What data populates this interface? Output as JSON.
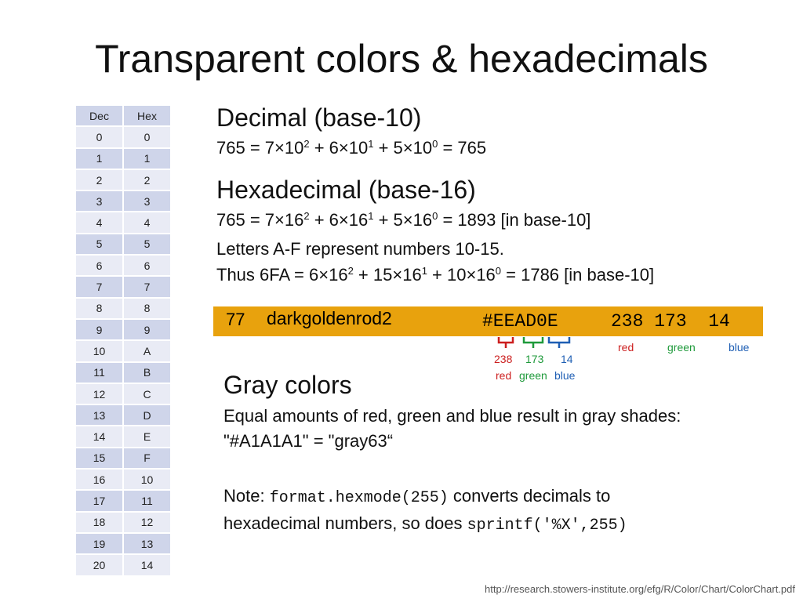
{
  "title": "Transparent colors & hexadecimals",
  "table": {
    "headers": [
      "Dec",
      "Hex"
    ],
    "rows": [
      [
        "0",
        "0"
      ],
      [
        "1",
        "1"
      ],
      [
        "2",
        "2"
      ],
      [
        "3",
        "3"
      ],
      [
        "4",
        "4"
      ],
      [
        "5",
        "5"
      ],
      [
        "6",
        "6"
      ],
      [
        "7",
        "7"
      ],
      [
        "8",
        "8"
      ],
      [
        "9",
        "9"
      ],
      [
        "10",
        "A"
      ],
      [
        "11",
        "B"
      ],
      [
        "12",
        "C"
      ],
      [
        "13",
        "D"
      ],
      [
        "14",
        "E"
      ],
      [
        "15",
        "F"
      ],
      [
        "16",
        "10"
      ],
      [
        "17",
        "11"
      ],
      [
        "18",
        "12"
      ],
      [
        "19",
        "13"
      ],
      [
        "20",
        "14"
      ]
    ]
  },
  "decimal": {
    "heading": "Decimal (base-10)",
    "eq": [
      "765 = 7×10",
      "2",
      " + 6×10",
      "1",
      " + 5×10",
      "0",
      " = 765"
    ]
  },
  "hexadecimal": {
    "heading": "Hexadecimal (base-16)",
    "eq": [
      "765 = 7×16",
      "2",
      " + 6×16",
      "1",
      " + 5×16",
      "0",
      " = 1893 [in base-10]"
    ],
    "letters": "Letters A-F represent numbers 10-15.",
    "thus": [
      "Thus 6FA = 6×16",
      "2",
      " + 15×16",
      "1",
      " + 10×16",
      "0",
      " = 1786 [in base-10]"
    ]
  },
  "color_bar": {
    "number": "77",
    "name": "darkgoldenrod2",
    "hex": "#EEAD0E",
    "rgb": "238 173  14",
    "bar_color": "#E8A20D",
    "rgb_labels": [
      "red",
      "green",
      "blue"
    ],
    "hex_parts": [
      "238",
      "173",
      "14"
    ],
    "part_labels": [
      "red",
      "green",
      "blue"
    ]
  },
  "colors": {
    "red": "#CC1F1F",
    "green": "#1F9A3B",
    "blue": "#1F5FB4"
  },
  "gray": {
    "heading": "Gray colors",
    "line1": "Equal amounts of red, green and blue result in gray shades:",
    "line2": "\"#A1A1A1\" = \"gray63“",
    "note_prefix": "Note: ",
    "note_code1": "format.hexmode(255)",
    "note_mid": " converts decimals to",
    "note_line2_prefix": "hexadecimal numbers, so does ",
    "note_code2": "sprintf('%X',255)"
  },
  "source": "http://research.stowers-institute.org/efg/R/Color/Chart/ColorChart.pdf"
}
